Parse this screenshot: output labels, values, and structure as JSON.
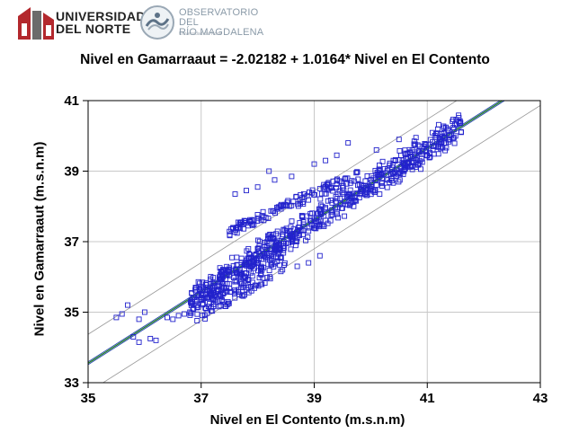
{
  "header": {
    "university_line1": "UNIVERSIDAD",
    "university_line2": "DEL NORTE",
    "observatory_line1": "OBSERVATORIO DEL",
    "observatory_line2": "RÍO MAGDALENA",
    "observatory_sub": "Universidad del Norte"
  },
  "chart_data": {
    "type": "scatter",
    "title": "Nivel en Gamarraaut = -2.02182 + 1.0164* Nivel en El Contento",
    "xlabel": "Nivel en El Contento (m.s.n.m)",
    "ylabel": "Nivel en Gamarraaut (m.s.n.m)",
    "xlim": [
      35,
      43
    ],
    "ylim": [
      33,
      41
    ],
    "xticks": [
      "35",
      "37",
      "39",
      "41",
      "43"
    ],
    "yticks": [
      "33",
      "35",
      "37",
      "39",
      "41"
    ],
    "grid": true,
    "fit": {
      "intercept": -2.02182,
      "slope": 1.0164
    },
    "confidence_offset": 0.04,
    "prediction_offset": 0.82,
    "colors": {
      "points": "#2222cc",
      "fit": "#1a7a1a",
      "confidence": "#2244aa",
      "prediction": "#999999",
      "grid": "#c8c8c8"
    },
    "marker": "open-square",
    "point_groups": [
      {
        "name": "",
        "x": [
          35.5,
          35.6,
          35.8,
          35.9,
          36.0,
          35.7,
          35.9,
          36.1,
          36.2,
          36.4,
          36.5,
          36.6,
          36.7,
          36.8,
          36.9,
          37.0,
          37.1,
          37.2,
          37.3,
          37.4,
          37.5,
          37.6,
          37.7,
          37.8,
          37.9,
          38.0,
          38.1,
          38.2,
          38.3,
          38.4,
          38.5,
          38.6,
          38.7,
          38.8,
          38.9,
          39.0,
          39.1,
          39.2,
          39.3,
          39.4,
          39.5,
          39.6,
          39.7,
          39.8,
          39.9,
          40.0,
          40.1,
          40.2,
          40.3,
          40.4,
          40.5,
          40.6,
          40.7,
          40.8,
          40.9,
          41.0,
          41.1,
          41.2,
          41.3,
          41.4,
          41.5,
          41.6
        ],
        "y": [
          34.85,
          34.95,
          34.3,
          34.15,
          35.0,
          35.2,
          34.8,
          34.25,
          34.2,
          34.85,
          34.8,
          34.9,
          34.95,
          35.0,
          35.3,
          35.35,
          35.4,
          35.5,
          35.6,
          35.7,
          35.8,
          35.9,
          36.0,
          36.1,
          36.3,
          36.4,
          36.5,
          36.6,
          36.7,
          36.8,
          36.95,
          37.05,
          37.1,
          37.2,
          37.3,
          37.45,
          37.5,
          37.6,
          37.75,
          37.85,
          37.95,
          38.05,
          38.15,
          38.25,
          38.35,
          38.5,
          38.6,
          38.65,
          38.75,
          38.85,
          38.95,
          39.05,
          39.15,
          39.25,
          39.35,
          39.45,
          39.6,
          39.7,
          39.8,
          39.9,
          40.0,
          40.1
        ]
      }
    ]
  }
}
